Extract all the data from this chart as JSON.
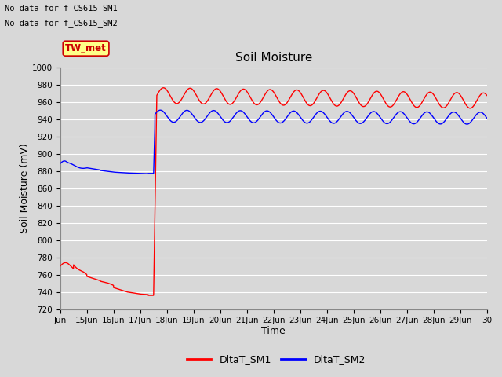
{
  "title": "Soil Moisture",
  "xlabel": "Time",
  "ylabel": "Soil Moisture (mV)",
  "ylim": [
    720,
    1000
  ],
  "yticks": [
    720,
    740,
    760,
    780,
    800,
    820,
    840,
    860,
    880,
    900,
    920,
    940,
    960,
    980,
    1000
  ],
  "xtick_labels": [
    "Jun",
    "15Jun",
    "16Jun",
    "17Jun",
    "18Jun",
    "19Jun",
    "20Jun",
    "21Jun",
    "22Jun",
    "23Jun",
    "24Jun",
    "25Jun",
    "26Jun",
    "27Jun",
    "28Jun",
    "29Jun",
    "30"
  ],
  "no_data_text1": "No data for f_CS615_SM1",
  "no_data_text2": "No data for f_CS615_SM2",
  "tw_met_label": "TW_met",
  "legend_labels": [
    "DltaT_SM1",
    "DltaT_SM2"
  ],
  "line1_color": "#ff0000",
  "line2_color": "#0000ff",
  "bg_color": "#d8d8d8",
  "plot_bg_color": "#d8d8d8",
  "grid_color": "#ffffff"
}
